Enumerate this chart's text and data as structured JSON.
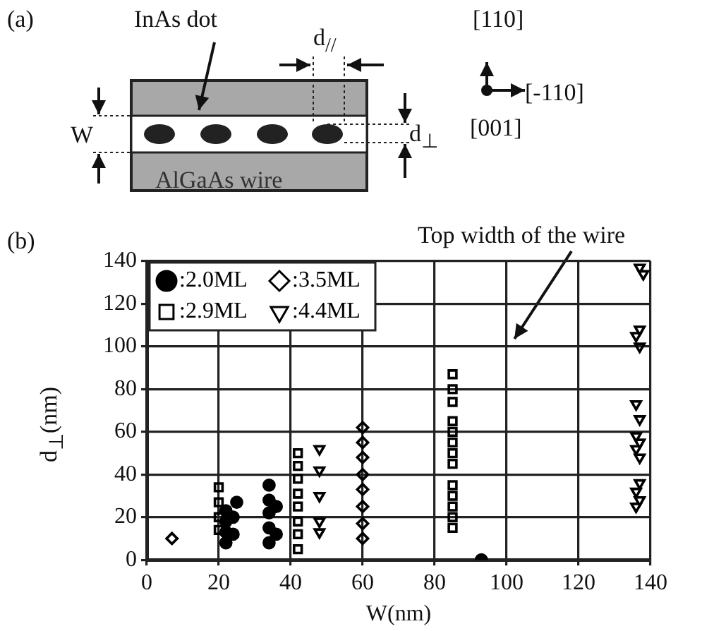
{
  "chart_data": {
    "type": "scatter",
    "xlabel": "W(nm)",
    "ylabel": "d$_{⊥}$(nm)",
    "xlim": [
      0,
      140
    ],
    "xticks": [
      0,
      20,
      40,
      60,
      80,
      100,
      120,
      140
    ],
    "ylim": [
      0,
      140
    ],
    "yticks": [
      0,
      20,
      40,
      60,
      80,
      100,
      120,
      140
    ],
    "grid": true,
    "legend": "top left",
    "annotations": [
      "(a)",
      "InAs dot",
      "d$_{//}$",
      "W",
      "AlGaAs wire",
      "d$_{⊥}$",
      "[110]",
      "[-110]",
      "[001]",
      "(b)",
      "Top width of the wire"
    ],
    "series": [
      {
        "name": ":2.0ML",
        "color": "#000000",
        "marker": "circle",
        "x": [
          22,
          22,
          22,
          22,
          24,
          24,
          25,
          34,
          34,
          34,
          34,
          34,
          36,
          36,
          93
        ],
        "values": [
          8,
          13,
          18,
          23,
          12,
          20,
          27,
          8,
          15,
          22,
          28,
          35,
          12,
          25,
          0
        ]
      },
      {
        "name": ":3.5ML",
        "color": "#000000",
        "marker": "diamond",
        "x": [
          7,
          60,
          60,
          60,
          60,
          60,
          60,
          60,
          60
        ],
        "values": [
          10,
          10,
          17,
          25,
          33,
          40,
          48,
          55,
          62
        ]
      },
      {
        "name": ":2.9ML",
        "color": "#000000",
        "marker": "square",
        "x": [
          20,
          20,
          20,
          20,
          42,
          42,
          42,
          42,
          42,
          42,
          42,
          42,
          85,
          85,
          85,
          85,
          85,
          85,
          85,
          85,
          85,
          85,
          85,
          85,
          85
        ],
        "values": [
          14,
          20,
          27,
          34,
          5,
          12,
          18,
          25,
          31,
          38,
          44,
          50,
          15,
          20,
          25,
          30,
          35,
          45,
          50,
          55,
          60,
          65,
          74,
          80,
          87
        ]
      },
      {
        "name": ":4.4ML",
        "color": "#000000",
        "marker": "triangle",
        "x": [
          48,
          48,
          48,
          48,
          48,
          136,
          137,
          136,
          137,
          137,
          136,
          137,
          136,
          137,
          136,
          137,
          136,
          137,
          137,
          138
        ],
        "values": [
          13,
          18,
          30,
          42,
          52,
          25,
          28,
          32,
          36,
          48,
          52,
          55,
          58,
          66,
          73,
          100,
          105,
          108,
          137,
          134
        ]
      }
    ]
  }
}
